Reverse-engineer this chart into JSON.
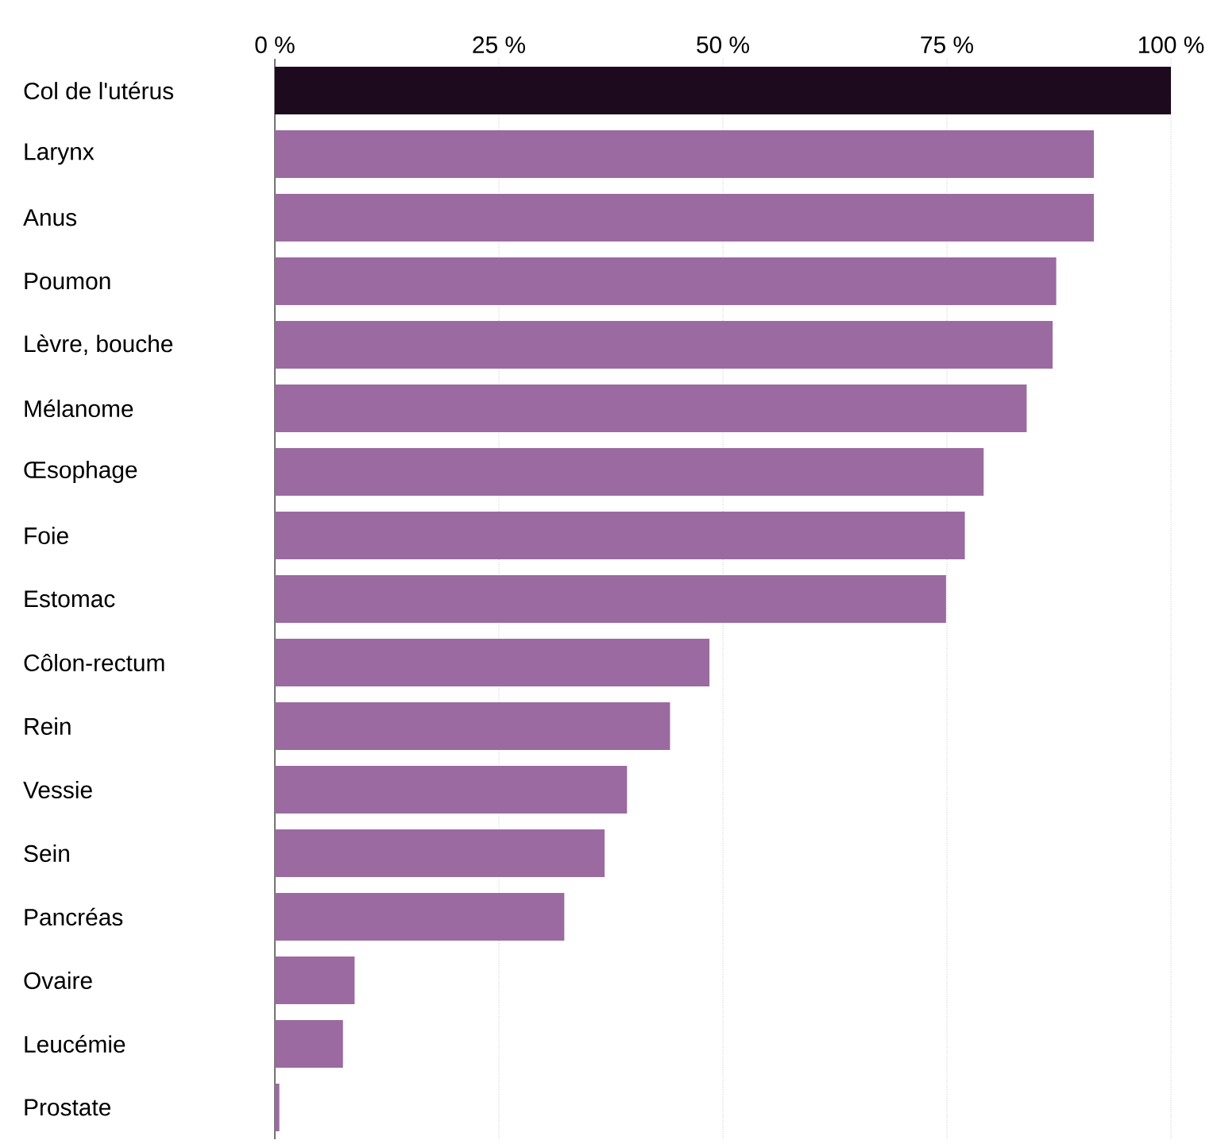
{
  "chart_data": {
    "type": "bar",
    "orientation": "horizontal",
    "categories": [
      "Col de l'utérus",
      "Larynx",
      "Anus",
      "Poumon",
      "Lèvre, bouche",
      "Mélanome",
      "Œsophage",
      "Foie",
      "Estomac",
      "Côlon-rectum",
      "Rein",
      "Vessie",
      "Sein",
      "Pancréas",
      "Ovaire",
      "Leucémie",
      "Prostate"
    ],
    "values": [
      100,
      91.4,
      91.4,
      87.2,
      86.8,
      83.9,
      79.1,
      77.0,
      74.9,
      48.5,
      44.1,
      39.3,
      36.8,
      32.3,
      8.9,
      7.6,
      0.5
    ],
    "colors": [
      "#1e0a1e",
      "#9b6aa0",
      "#9b6aa0",
      "#9b6aa0",
      "#9b6aa0",
      "#9b6aa0",
      "#9b6aa0",
      "#9b6aa0",
      "#9b6aa0",
      "#9b6aa0",
      "#9b6aa0",
      "#9b6aa0",
      "#9b6aa0",
      "#9b6aa0",
      "#9b6aa0",
      "#9b6aa0",
      "#9b6aa0"
    ],
    "xlim": [
      0,
      100
    ],
    "xticks": [
      {
        "value": 0,
        "label": "0 %"
      },
      {
        "value": 25,
        "label": "25 %"
      },
      {
        "value": 50,
        "label": "50 %"
      },
      {
        "value": 75,
        "label": "75 %"
      },
      {
        "value": 100,
        "label": "100 %"
      }
    ],
    "grid": "x"
  }
}
